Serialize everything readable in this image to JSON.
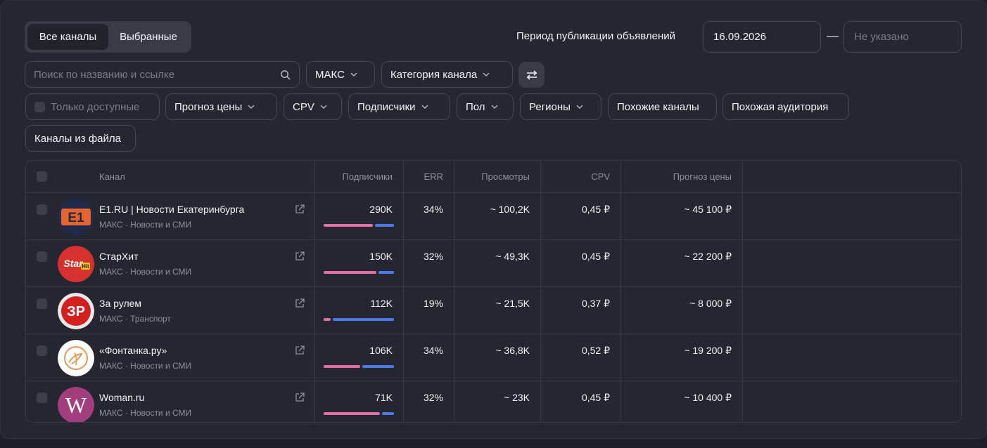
{
  "tabs": {
    "all": "Все каналы",
    "selected": "Выбранные"
  },
  "period": {
    "label": "Период публикации объявлений",
    "from": "16.09.2026",
    "dash": "—",
    "to_placeholder": "Не указано"
  },
  "search": {
    "placeholder": "Поиск по названию и ссылке"
  },
  "filters": {
    "platform": "МАКС",
    "category": "Категория канала",
    "only_available": "Только доступные",
    "price_forecast": "Прогноз цены",
    "cpv": "CPV",
    "subscribers": "Подписчики",
    "gender": "Пол",
    "regions": "Регионы",
    "similar_channels": "Похожие каналы",
    "similar_audience": "Похожая аудитория",
    "from_file": "Каналы из файла"
  },
  "table": {
    "headers": {
      "channel": "Канал",
      "subscribers": "Подписчики",
      "err": "ERR",
      "views": "Просмотры",
      "cpv": "CPV",
      "price": "Прогноз цены"
    },
    "rows": [
      {
        "name": "E1.RU | Новости Екатеринбурга",
        "meta": "МАКС · Новости и СМИ",
        "logo": "E1",
        "subs": "290K",
        "pink": 0.7,
        "err": "34%",
        "views": "~ 100,2K",
        "cpv": "0,45 ₽",
        "price": "~ 45 100 ₽"
      },
      {
        "name": "СтарХит",
        "meta": "МАКС · Новости и СМИ",
        "logo": "Star",
        "subs": "150K",
        "pink": 0.75,
        "err": "32%",
        "views": "~ 49,3K",
        "cpv": "0,45 ₽",
        "price": "~ 22 200 ₽"
      },
      {
        "name": "За рулем",
        "meta": "МАКС · Транспорт",
        "logo": "ЗР",
        "subs": "112K",
        "pink": 0.1,
        "err": "19%",
        "views": "~ 21,5K",
        "cpv": "0,37 ₽",
        "price": "~ 8 000 ₽"
      },
      {
        "name": "«Фонтанка.ру»",
        "meta": "МАКС · Новости и СМИ",
        "logo": "",
        "subs": "106K",
        "pink": 0.52,
        "err": "34%",
        "views": "~ 36,8K",
        "cpv": "0,52 ₽",
        "price": "~ 19 200 ₽"
      },
      {
        "name": "Woman.ru",
        "meta": "МАКС · Новости и СМИ",
        "logo": "W",
        "subs": "71K",
        "pink": 0.8,
        "err": "32%",
        "views": "~ 23K",
        "cpv": "0,45 ₽",
        "price": "~ 10 400 ₽"
      }
    ]
  },
  "colors": {
    "pink": "#e26fa8",
    "blue": "#4a7be8",
    "bg": "#25262f"
  },
  "icons": {
    "search": "search-icon",
    "chevron": "chevron-down-icon",
    "filter": "sliders-icon",
    "external": "external-link-icon"
  }
}
